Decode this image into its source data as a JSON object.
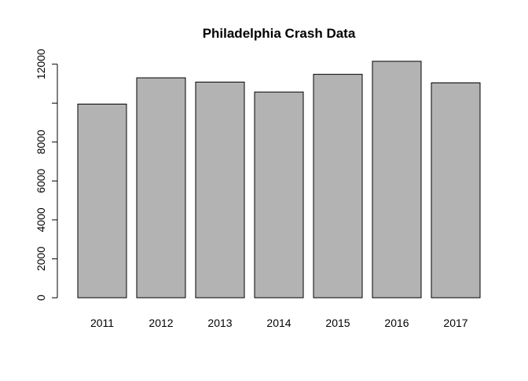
{
  "chart_data": {
    "type": "bar",
    "title": "Philadelphia Crash Data",
    "xlabel": "",
    "ylabel": "",
    "categories": [
      "2011",
      "2012",
      "2013",
      "2014",
      "2015",
      "2016",
      "2017"
    ],
    "values": [
      9950,
      11300,
      11080,
      10570,
      11480,
      12150,
      11040
    ],
    "ylim": [
      0,
      12150
    ],
    "yticks": [
      0,
      2000,
      4000,
      6000,
      8000,
      10000,
      12000
    ],
    "ytick_labels": [
      "0",
      "2000",
      "4000",
      "6000",
      "8000",
      "",
      "12000"
    ],
    "grid": false,
    "legend": "none",
    "bar_color": "#b3b3b3",
    "bar_edge_color": "#000000"
  }
}
